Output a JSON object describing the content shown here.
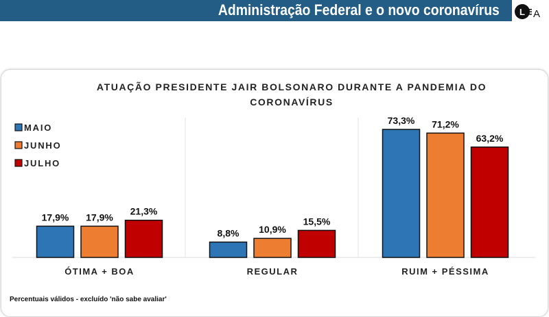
{
  "header": {
    "title": "Administração Federal e o novo coronavírus",
    "logo_text": "LEA"
  },
  "footnote": "Percentuais válidos - excluído 'não sabe avaliar'",
  "chart_data": {
    "type": "bar",
    "title": "ATUAÇÃO PRESIDENTE JAIR BOLSONARO DURANTE A PANDEMIA DO CORONAVÍRUS",
    "categories": [
      "ÓTIMA + BOA",
      "REGULAR",
      "RUIM + PÉSSIMA"
    ],
    "series": [
      {
        "name": "MAIO",
        "color": "#2e75b6",
        "values": [
          17.9,
          8.8,
          73.3
        ],
        "labels": [
          "17,9%",
          "8,8%",
          "73,3%"
        ]
      },
      {
        "name": "JUNHO",
        "color": "#ed7d31",
        "values": [
          17.9,
          10.9,
          71.2
        ],
        "labels": [
          "17,9%",
          "10,9%",
          "71,2%"
        ]
      },
      {
        "name": "JULHO",
        "color": "#c00000",
        "values": [
          21.3,
          15.5,
          63.2
        ],
        "labels": [
          "21,3%",
          "15,5%",
          "63,2%"
        ]
      }
    ],
    "ylim": [
      0,
      80
    ],
    "legend": "top-left",
    "grid": false,
    "data_labels": true
  }
}
